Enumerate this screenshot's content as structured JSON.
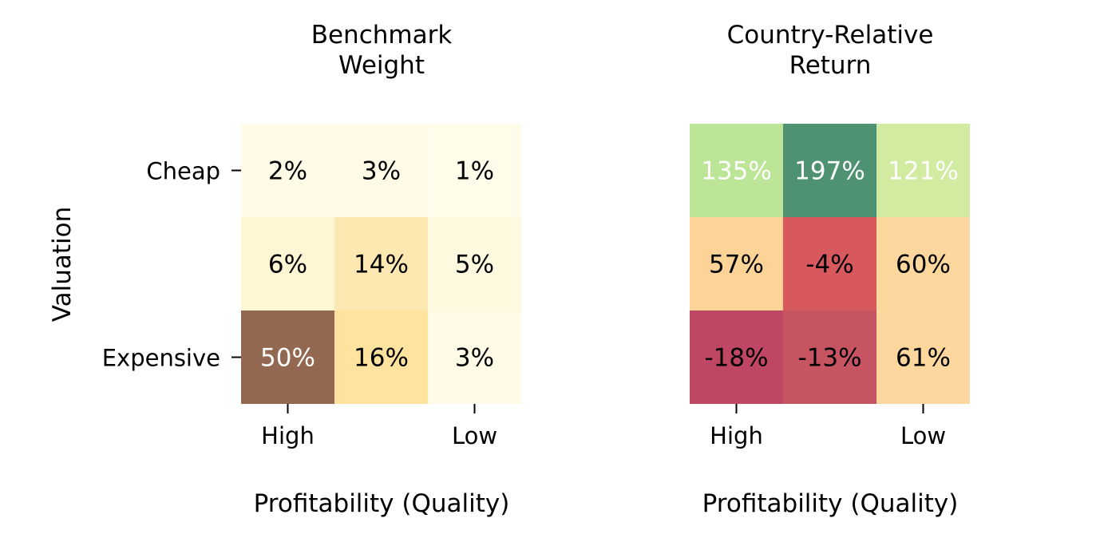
{
  "chart_data": [
    {
      "type": "heatmap",
      "title_lines": [
        "Benchmark",
        "Weight"
      ],
      "xlabel": "Profitability (Quality)",
      "ylabel": "Valuation",
      "x_tick_labels": [
        "High",
        "",
        "Low"
      ],
      "y_tick_labels": [
        "Cheap",
        "",
        "Expensive"
      ],
      "values": [
        [
          2,
          3,
          1
        ],
        [
          6,
          14,
          5
        ],
        [
          50,
          16,
          3
        ]
      ],
      "cell_labels": [
        [
          "2%",
          "3%",
          "1%"
        ],
        [
          "6%",
          "14%",
          "5%"
        ],
        [
          "50%",
          "16%",
          "3%"
        ]
      ],
      "colors": [
        [
          "#fffbe6",
          "#fffbe6",
          "#fffde9"
        ],
        [
          "#fff6d4",
          "#fee8b2",
          "#fffadf"
        ],
        [
          "#936851",
          "#fee39f",
          "#fffbe6"
        ]
      ],
      "label_colors": [
        [
          "#000000",
          "#000000",
          "#000000"
        ],
        [
          "#000000",
          "#000000",
          "#000000"
        ],
        [
          "#ffffff",
          "#000000",
          "#000000"
        ]
      ]
    },
    {
      "type": "heatmap",
      "title_lines": [
        "Country-Relative",
        "Return"
      ],
      "xlabel": "Profitability (Quality)",
      "ylabel": "",
      "x_tick_labels": [
        "High",
        "",
        "Low"
      ],
      "y_tick_labels": [],
      "values": [
        [
          135,
          197,
          121
        ],
        [
          57,
          -4,
          60
        ],
        [
          -18,
          -13,
          61
        ]
      ],
      "cell_labels": [
        [
          "135%",
          "197%",
          "121%"
        ],
        [
          "57%",
          "-4%",
          "60%"
        ],
        [
          "-18%",
          "-13%",
          "61%"
        ]
      ],
      "colors": [
        [
          "#bde597",
          "#4e9272",
          "#d1eba1"
        ],
        [
          "#fdd398",
          "#d7595e",
          "#fdd79d"
        ],
        [
          "#bf4763",
          "#c65461",
          "#fdd79d"
        ]
      ],
      "label_colors": [
        [
          "#ffffff",
          "#ffffff",
          "#ffffff"
        ],
        [
          "#000000",
          "#000000",
          "#000000"
        ],
        [
          "#000000",
          "#000000",
          "#000000"
        ]
      ]
    }
  ]
}
